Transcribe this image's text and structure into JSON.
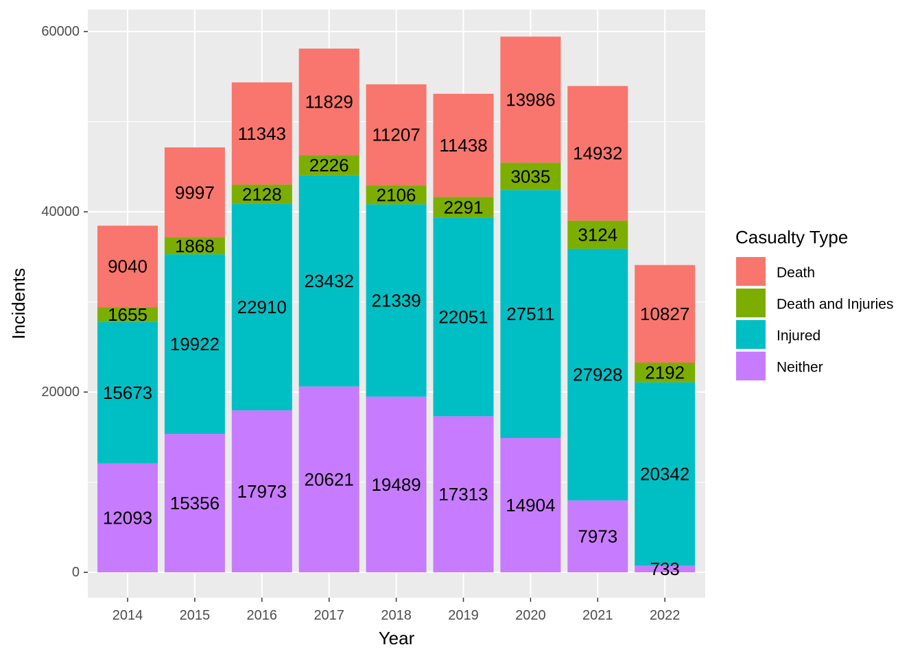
{
  "chart_data": {
    "type": "bar",
    "stacked": true,
    "title": "",
    "xlabel": "Year",
    "ylabel": "Incidents",
    "categories": [
      "2014",
      "2015",
      "2016",
      "2017",
      "2018",
      "2019",
      "2020",
      "2021",
      "2022"
    ],
    "ylim": [
      0,
      60000
    ],
    "yticks": [
      0,
      20000,
      40000,
      60000
    ],
    "grid": true,
    "legend_title": "Casualty Type",
    "legend_position": "right",
    "series": [
      {
        "name": "Neither",
        "color": "#C77CFF",
        "values": [
          12093,
          15356,
          17973,
          20621,
          19489,
          17313,
          14904,
          7973,
          733
        ]
      },
      {
        "name": "Injured",
        "color": "#00BFC4",
        "values": [
          15673,
          19922,
          22910,
          23432,
          21339,
          22051,
          27511,
          27928,
          20342
        ]
      },
      {
        "name": "Death and Injuries",
        "color": "#7CAE00",
        "values": [
          1655,
          1868,
          2128,
          2226,
          2106,
          2291,
          3035,
          3124,
          2192
        ]
      },
      {
        "name": "Death",
        "color": "#F8766D",
        "values": [
          9040,
          9997,
          11343,
          11829,
          11207,
          11438,
          13986,
          14932,
          10827
        ]
      }
    ],
    "legend_order": [
      "Death",
      "Death and Injuries",
      "Injured",
      "Neither"
    ]
  }
}
